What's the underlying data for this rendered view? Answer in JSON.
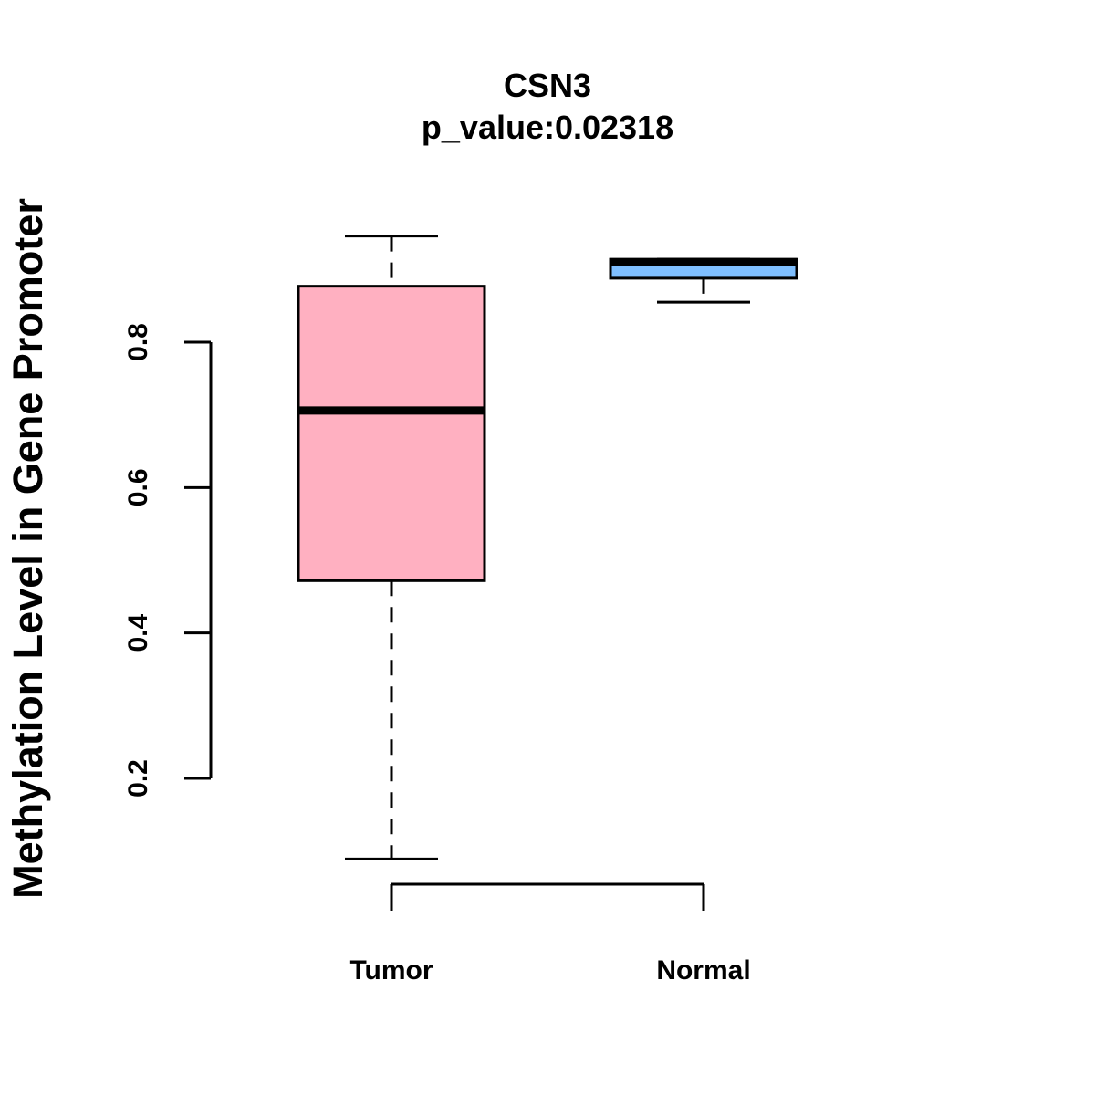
{
  "chart_data": {
    "type": "boxplot",
    "title": "CSN3",
    "subtitle": "p_value:0.02318",
    "xlabel": "",
    "ylabel": "Methylation Level in Gene Promoter",
    "ylim": [
      0.2,
      0.8
    ],
    "yticks": [
      0.2,
      0.4,
      0.6,
      0.8
    ],
    "ytick_labels": [
      "0.2",
      "0.4",
      "0.6",
      "0.8"
    ],
    "categories": [
      "Tumor",
      "Normal"
    ],
    "series": [
      {
        "name": "Tumor",
        "color": "#FFB0C1",
        "whisker_low": 0.089,
        "q1": 0.472,
        "median": 0.706,
        "q3": 0.877,
        "whisker_high": 0.946
      },
      {
        "name": "Normal",
        "color": "#7FBFFF",
        "whisker_low": 0.855,
        "q1": 0.888,
        "median": 0.91,
        "q3": 0.914,
        "whisker_high": 0.914
      }
    ],
    "grid": false,
    "legend": "none"
  }
}
